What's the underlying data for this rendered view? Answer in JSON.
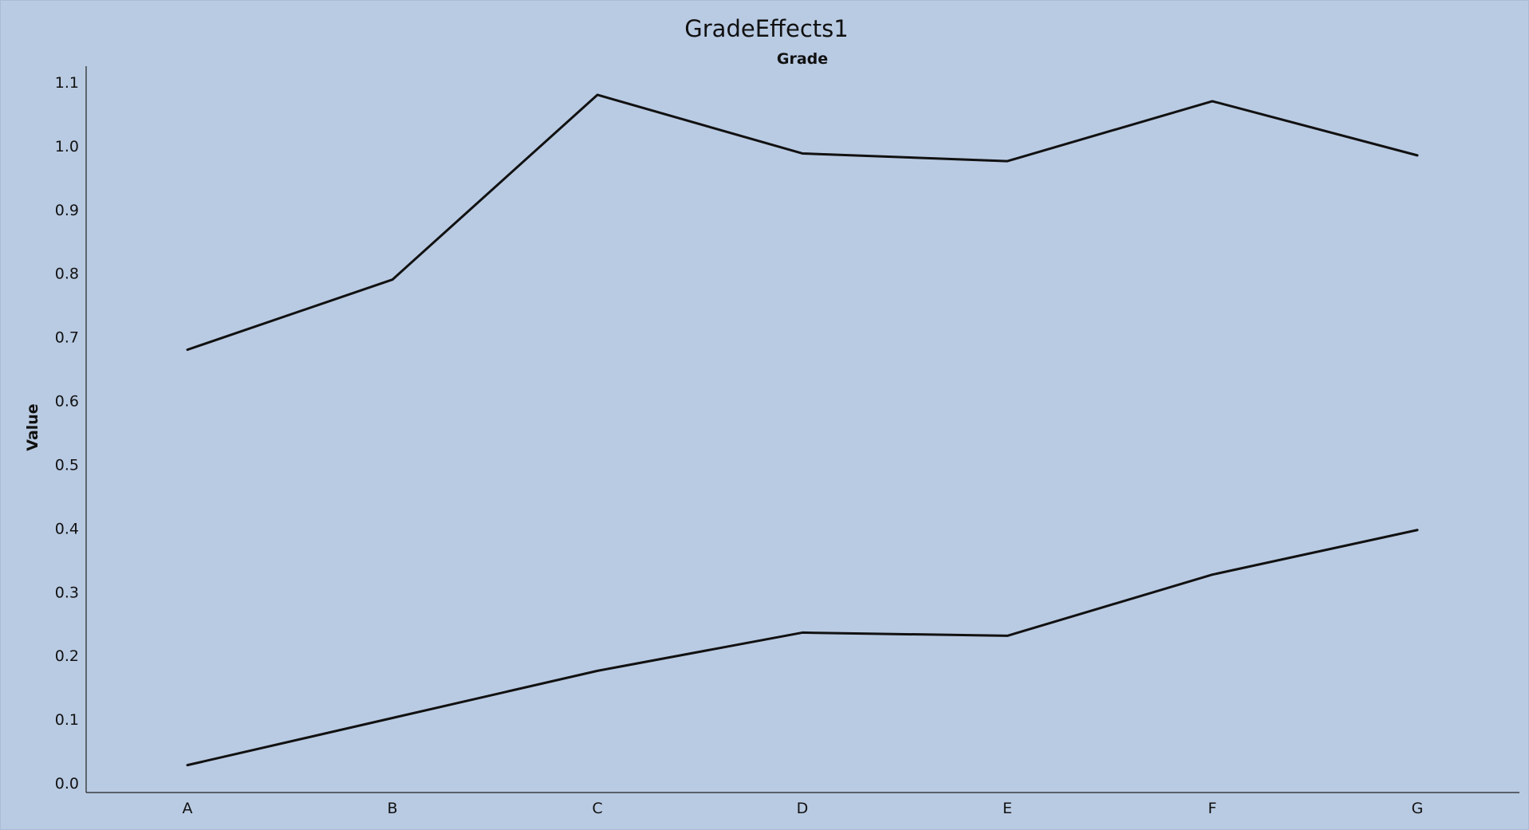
{
  "chart_data": {
    "type": "line",
    "title": "GradeEffects1",
    "subtitle": "Grade",
    "xlabel": "",
    "ylabel": "Value",
    "categories": [
      "A",
      "B",
      "C",
      "D",
      "E",
      "F",
      "G"
    ],
    "series": [
      {
        "values": [
          0.68,
          0.79,
          1.08,
          0.988,
          0.976,
          1.07,
          0.985
        ]
      },
      {
        "values": [
          0.028,
          0.102,
          0.176,
          0.236,
          0.231,
          0.327,
          0.397
        ]
      }
    ],
    "ylim": [
      -0.015,
      1.125
    ],
    "yticks": [
      "0.0",
      "0.1",
      "0.2",
      "0.3",
      "0.4",
      "0.5",
      "0.6",
      "0.7",
      "0.8",
      "0.9",
      "1.0",
      "1.1"
    ],
    "grid": false,
    "legend": "none",
    "colors": {
      "background": "#b9cbe3",
      "line": "#111111"
    }
  }
}
